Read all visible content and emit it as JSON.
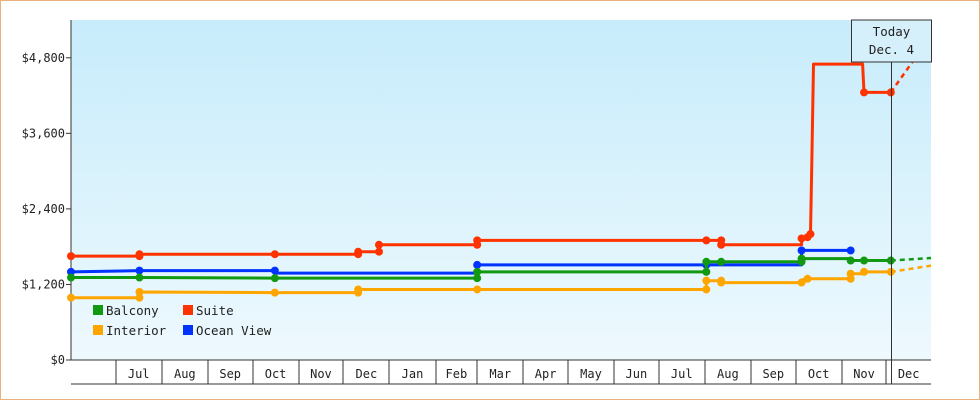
{
  "chart_data": {
    "type": "line",
    "title": "",
    "xlabel": "",
    "ylabel": "",
    "ylim": [
      0,
      5400
    ],
    "yticks": [
      {
        "value": 0,
        "label": "$0"
      },
      {
        "value": 1200,
        "label": "$1,200"
      },
      {
        "value": 2400,
        "label": "$2,400"
      },
      {
        "value": 3600,
        "label": "$3,600"
      },
      {
        "value": 4800,
        "label": "$4,800"
      }
    ],
    "x_start": "2024-06-01",
    "x_end": "2025-12-31",
    "xticks": [
      {
        "label": "Jul",
        "start": "2024-07-01",
        "end": "2024-07-31"
      },
      {
        "label": "Aug",
        "start": "2024-08-01",
        "end": "2024-08-31"
      },
      {
        "label": "Sep",
        "start": "2024-09-01",
        "end": "2024-09-30"
      },
      {
        "label": "Oct",
        "start": "2024-10-01",
        "end": "2024-10-31"
      },
      {
        "label": "Nov",
        "start": "2024-11-01",
        "end": "2024-11-30"
      },
      {
        "label": "Dec",
        "start": "2024-12-01",
        "end": "2024-12-31"
      },
      {
        "label": "Jan",
        "start": "2025-01-01",
        "end": "2025-01-31"
      },
      {
        "label": "Feb",
        "start": "2025-02-01",
        "end": "2025-02-28"
      },
      {
        "label": "Mar",
        "start": "2025-03-01",
        "end": "2025-03-31"
      },
      {
        "label": "Apr",
        "start": "2025-04-01",
        "end": "2025-04-30"
      },
      {
        "label": "May",
        "start": "2025-05-01",
        "end": "2025-05-31"
      },
      {
        "label": "Jun",
        "start": "2025-06-01",
        "end": "2025-06-30"
      },
      {
        "label": "Jul",
        "start": "2025-07-01",
        "end": "2025-07-31"
      },
      {
        "label": "Aug",
        "start": "2025-08-01",
        "end": "2025-08-31"
      },
      {
        "label": "Sep",
        "start": "2025-09-01",
        "end": "2025-09-30"
      },
      {
        "label": "Oct",
        "start": "2025-10-01",
        "end": "2025-10-31"
      },
      {
        "label": "Nov",
        "start": "2025-11-01",
        "end": "2025-11-30"
      },
      {
        "label": "Dec",
        "start": "2025-12-01",
        "end": "2025-12-31"
      }
    ],
    "today": {
      "date": "2025-12-04",
      "label_line1": "Today",
      "label_line2": "Dec. 4"
    },
    "grid": false,
    "legend_position": "bottom-left",
    "series": [
      {
        "name": "Suite",
        "color": "#ff3300",
        "points": [
          [
            "2024-06-01",
            1650
          ],
          [
            "2024-07-17",
            1650
          ],
          [
            "2024-07-17",
            1680
          ],
          [
            "2024-10-16",
            1680
          ],
          [
            "2024-12-11",
            1680
          ],
          [
            "2024-12-11",
            1720
          ],
          [
            "2024-12-25",
            1720
          ],
          [
            "2024-12-25",
            1830
          ],
          [
            "2025-03-01",
            1830
          ],
          [
            "2025-03-01",
            1900
          ],
          [
            "2025-08-02",
            1900
          ],
          [
            "2025-08-12",
            1900
          ],
          [
            "2025-08-12",
            1830
          ],
          [
            "2025-10-05",
            1830
          ],
          [
            "2025-10-05",
            1930
          ],
          [
            "2025-10-09",
            1950
          ],
          [
            "2025-10-11",
            2000
          ],
          [
            "2025-10-12",
            3300
          ],
          [
            "2025-10-13",
            4700
          ],
          [
            "2025-11-15",
            4700
          ],
          [
            "2025-11-16",
            4250
          ],
          [
            "2025-12-04",
            4250
          ]
        ],
        "markers": [
          [
            "2024-06-01",
            1650
          ],
          [
            "2024-07-17",
            1650
          ],
          [
            "2024-07-17",
            1680
          ],
          [
            "2024-10-16",
            1680
          ],
          [
            "2024-12-11",
            1680
          ],
          [
            "2024-12-11",
            1720
          ],
          [
            "2024-12-25",
            1720
          ],
          [
            "2024-12-25",
            1830
          ],
          [
            "2025-03-01",
            1830
          ],
          [
            "2025-03-01",
            1900
          ],
          [
            "2025-08-02",
            1900
          ],
          [
            "2025-08-12",
            1900
          ],
          [
            "2025-08-12",
            1830
          ],
          [
            "2025-10-05",
            1930
          ],
          [
            "2025-10-09",
            1950
          ],
          [
            "2025-10-11",
            2000
          ],
          [
            "2025-11-16",
            4250
          ],
          [
            "2025-12-04",
            4250
          ]
        ],
        "forecast": [
          [
            "2025-12-04",
            4250
          ],
          [
            "2025-12-31",
            5150
          ]
        ]
      },
      {
        "name": "Ocean View",
        "color": "#0033ff",
        "points": [
          [
            "2024-06-01",
            1400
          ],
          [
            "2024-07-17",
            1420
          ],
          [
            "2024-10-16",
            1420
          ],
          [
            "2024-10-16",
            1380
          ],
          [
            "2025-03-01",
            1380
          ],
          [
            "2025-03-01",
            1510
          ],
          [
            "2025-08-02",
            1510
          ],
          [
            "2025-10-05",
            1510
          ],
          [
            "2025-10-05",
            1740
          ],
          [
            "2025-11-07",
            1740
          ]
        ],
        "markers": [
          [
            "2024-06-01",
            1400
          ],
          [
            "2024-07-17",
            1420
          ],
          [
            "2024-10-16",
            1420
          ],
          [
            "2025-03-01",
            1510
          ],
          [
            "2025-08-02",
            1510
          ],
          [
            "2025-10-05",
            1740
          ],
          [
            "2025-11-07",
            1740
          ]
        ],
        "forecast": []
      },
      {
        "name": "Balcony",
        "color": "#119911",
        "points": [
          [
            "2024-06-01",
            1310
          ],
          [
            "2024-07-17",
            1310
          ],
          [
            "2024-10-16",
            1300
          ],
          [
            "2025-03-01",
            1300
          ],
          [
            "2025-03-01",
            1400
          ],
          [
            "2025-08-02",
            1400
          ],
          [
            "2025-08-02",
            1560
          ],
          [
            "2025-10-05",
            1560
          ],
          [
            "2025-10-05",
            1610
          ],
          [
            "2025-11-07",
            1610
          ],
          [
            "2025-11-07",
            1580
          ],
          [
            "2025-12-04",
            1580
          ]
        ],
        "markers": [
          [
            "2024-06-01",
            1310
          ],
          [
            "2024-07-17",
            1310
          ],
          [
            "2024-10-16",
            1300
          ],
          [
            "2025-03-01",
            1300
          ],
          [
            "2025-03-01",
            1400
          ],
          [
            "2025-08-02",
            1400
          ],
          [
            "2025-08-02",
            1560
          ],
          [
            "2025-08-12",
            1560
          ],
          [
            "2025-10-05",
            1560
          ],
          [
            "2025-10-05",
            1610
          ],
          [
            "2025-11-07",
            1580
          ],
          [
            "2025-11-16",
            1580
          ],
          [
            "2025-12-04",
            1580
          ]
        ],
        "forecast": [
          [
            "2025-12-04",
            1580
          ],
          [
            "2025-12-31",
            1620
          ]
        ]
      },
      {
        "name": "Interior",
        "color": "#ffa500",
        "points": [
          [
            "2024-06-01",
            990
          ],
          [
            "2024-07-17",
            990
          ],
          [
            "2024-07-17",
            1080
          ],
          [
            "2024-10-16",
            1070
          ],
          [
            "2024-12-11",
            1070
          ],
          [
            "2024-12-11",
            1120
          ],
          [
            "2025-03-01",
            1120
          ],
          [
            "2025-08-02",
            1120
          ],
          [
            "2025-08-02",
            1260
          ],
          [
            "2025-08-12",
            1260
          ],
          [
            "2025-08-12",
            1230
          ],
          [
            "2025-10-05",
            1230
          ],
          [
            "2025-10-05",
            1270
          ],
          [
            "2025-10-09",
            1290
          ],
          [
            "2025-11-07",
            1290
          ],
          [
            "2025-11-07",
            1370
          ],
          [
            "2025-11-16",
            1370
          ],
          [
            "2025-11-16",
            1400
          ],
          [
            "2025-12-04",
            1400
          ]
        ],
        "markers": [
          [
            "2024-06-01",
            990
          ],
          [
            "2024-07-17",
            990
          ],
          [
            "2024-07-17",
            1080
          ],
          [
            "2024-10-16",
            1070
          ],
          [
            "2024-12-11",
            1070
          ],
          [
            "2024-12-11",
            1120
          ],
          [
            "2025-03-01",
            1120
          ],
          [
            "2025-08-02",
            1120
          ],
          [
            "2025-08-02",
            1260
          ],
          [
            "2025-08-12",
            1260
          ],
          [
            "2025-08-12",
            1230
          ],
          [
            "2025-10-05",
            1230
          ],
          [
            "2025-10-09",
            1290
          ],
          [
            "2025-11-07",
            1290
          ],
          [
            "2025-11-07",
            1370
          ],
          [
            "2025-11-16",
            1400
          ],
          [
            "2025-12-04",
            1400
          ]
        ],
        "forecast": [
          [
            "2025-12-04",
            1400
          ],
          [
            "2025-12-31",
            1500
          ]
        ]
      }
    ],
    "legend": [
      {
        "name": "Balcony",
        "color": "#119911"
      },
      {
        "name": "Suite",
        "color": "#ff3300"
      },
      {
        "name": "Interior",
        "color": "#ffa500"
      },
      {
        "name": "Ocean View",
        "color": "#0033ff"
      }
    ]
  }
}
